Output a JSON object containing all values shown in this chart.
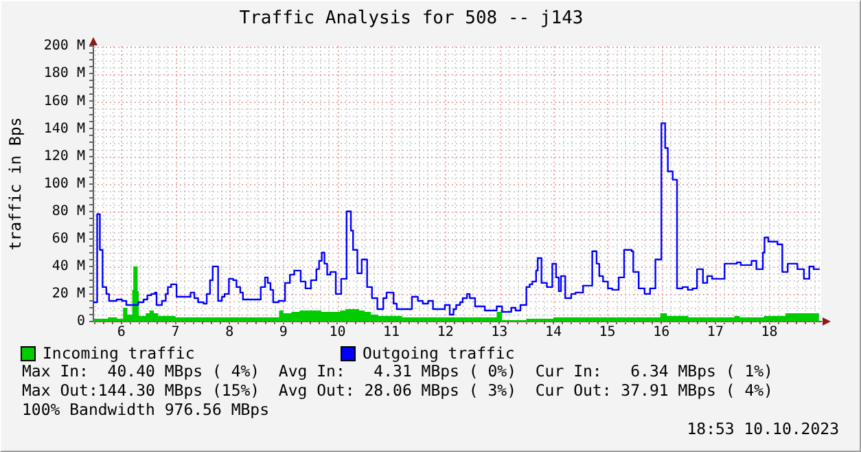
{
  "chart_data": {
    "type": "step",
    "title": "Traffic Analysis for 508 -- j143",
    "ylabel": "traffic in Bps",
    "xlim": [
      5.48,
      18.96
    ],
    "xticks": [
      {
        "value": 5.5,
        "label": null
      },
      {
        "value": 5.6667,
        "label": null
      },
      {
        "value": 5.8333,
        "label": null
      },
      6,
      {
        "value": 6.1667,
        "label": null
      },
      {
        "value": 6.3333,
        "label": null
      },
      {
        "value": 6.5,
        "label": null
      },
      {
        "value": 6.6667,
        "label": null
      },
      {
        "value": 6.8333,
        "label": null
      },
      7,
      {
        "value": 7.1667,
        "label": null
      },
      {
        "value": 7.3333,
        "label": null
      },
      {
        "value": 7.5,
        "label": null
      },
      {
        "value": 7.6667,
        "label": null
      },
      {
        "value": 7.8333,
        "label": null
      },
      8,
      {
        "value": 8.1667,
        "label": null
      },
      {
        "value": 8.3333,
        "label": null
      },
      {
        "value": 8.5,
        "label": null
      },
      {
        "value": 8.6667,
        "label": null
      },
      {
        "value": 8.8333,
        "label": null
      },
      9,
      {
        "value": 9.1667,
        "label": null
      },
      {
        "value": 9.3333,
        "label": null
      },
      {
        "value": 9.5,
        "label": null
      },
      {
        "value": 9.6667,
        "label": null
      },
      {
        "value": 9.8333,
        "label": null
      },
      10,
      {
        "value": 10.1667,
        "label": null
      },
      {
        "value": 10.3333,
        "label": null
      },
      {
        "value": 10.5,
        "label": null
      },
      {
        "value": 10.6667,
        "label": null
      },
      {
        "value": 10.8333,
        "label": null
      },
      11,
      {
        "value": 11.1667,
        "label": null
      },
      {
        "value": 11.3333,
        "label": null
      },
      {
        "value": 11.5,
        "label": null
      },
      {
        "value": 11.6667,
        "label": null
      },
      {
        "value": 11.8333,
        "label": null
      },
      12,
      {
        "value": 12.1667,
        "label": null
      },
      {
        "value": 12.3333,
        "label": null
      },
      {
        "value": 12.5,
        "label": null
      },
      {
        "value": 12.6667,
        "label": null
      },
      {
        "value": 12.8333,
        "label": null
      },
      13,
      {
        "value": 13.1667,
        "label": null
      },
      {
        "value": 13.3333,
        "label": null
      },
      {
        "value": 13.5,
        "label": null
      },
      {
        "value": 13.6667,
        "label": null
      },
      {
        "value": 13.8333,
        "label": null
      },
      14,
      {
        "value": 14.1667,
        "label": null
      },
      {
        "value": 14.3333,
        "label": null
      },
      {
        "value": 14.5,
        "label": null
      },
      {
        "value": 14.6667,
        "label": null
      },
      {
        "value": 14.8333,
        "label": null
      },
      15,
      {
        "value": 15.1667,
        "label": null
      },
      {
        "value": 15.3333,
        "label": null
      },
      {
        "value": 15.5,
        "label": null
      },
      {
        "value": 15.6667,
        "label": null
      },
      {
        "value": 15.8333,
        "label": null
      },
      16,
      {
        "value": 16.1667,
        "label": null
      },
      {
        "value": 16.3333,
        "label": null
      },
      {
        "value": 16.5,
        "label": null
      },
      {
        "value": 16.6667,
        "label": null
      },
      {
        "value": 16.8333,
        "label": null
      },
      17,
      {
        "value": 17.1667,
        "label": null
      },
      {
        "value": 17.3333,
        "label": null
      },
      {
        "value": 17.5,
        "label": null
      },
      {
        "value": 17.6667,
        "label": null
      },
      {
        "value": 17.8333,
        "label": null
      },
      18,
      {
        "value": 18.1667,
        "label": null
      },
      {
        "value": 18.3333,
        "label": null
      },
      {
        "value": 18.5,
        "label": null
      },
      {
        "value": 18.6667,
        "label": null
      },
      {
        "value": 18.8333,
        "label": null
      }
    ],
    "ylim": [
      0,
      200000000
    ],
    "yticks": [
      0,
      {
        "value": 5000000,
        "label": null
      },
      {
        "value": 10000000,
        "label": null
      },
      {
        "value": 15000000,
        "label": null
      },
      {
        "value": 20000000,
        "label": "20 M"
      },
      {
        "value": 25000000,
        "label": null
      },
      {
        "value": 30000000,
        "label": null
      },
      {
        "value": 35000000,
        "label": null
      },
      {
        "value": 40000000,
        "label": "40 M"
      },
      {
        "value": 45000000,
        "label": null
      },
      {
        "value": 50000000,
        "label": null
      },
      {
        "value": 55000000,
        "label": null
      },
      {
        "value": 60000000,
        "label": "60 M"
      },
      {
        "value": 65000000,
        "label": null
      },
      {
        "value": 70000000,
        "label": null
      },
      {
        "value": 75000000,
        "label": null
      },
      {
        "value": 80000000,
        "label": "80 M"
      },
      {
        "value": 85000000,
        "label": null
      },
      {
        "value": 90000000,
        "label": null
      },
      {
        "value": 95000000,
        "label": null
      },
      {
        "value": 100000000,
        "label": "100 M"
      },
      {
        "value": 105000000,
        "label": null
      },
      {
        "value": 110000000,
        "label": null
      },
      {
        "value": 115000000,
        "label": null
      },
      {
        "value": 120000000,
        "label": "120 M"
      },
      {
        "value": 125000000,
        "label": null
      },
      {
        "value": 130000000,
        "label": null
      },
      {
        "value": 135000000,
        "label": null
      },
      {
        "value": 140000000,
        "label": "140 M"
      },
      {
        "value": 145000000,
        "label": null
      },
      {
        "value": 150000000,
        "label": null
      },
      {
        "value": 155000000,
        "label": null
      },
      {
        "value": 160000000,
        "label": "160 M"
      },
      {
        "value": 165000000,
        "label": null
      },
      {
        "value": 170000000,
        "label": null
      },
      {
        "value": 175000000,
        "label": null
      },
      {
        "value": 180000000,
        "label": "180 M"
      },
      {
        "value": 185000000,
        "label": null
      },
      {
        "value": 190000000,
        "label": null
      },
      {
        "value": 195000000,
        "label": null
      },
      {
        "value": 200000000,
        "label": "200 M"
      }
    ],
    "grid": true,
    "legend": "bottom",
    "series": [
      {
        "name": "Incoming traffic",
        "type": "area",
        "color": "#00cc00",
        "x": [
          5.48,
          5.75,
          5.92,
          6.03,
          6.11,
          6.2,
          6.22,
          6.3,
          6.32,
          6.45,
          6.52,
          6.6,
          6.68,
          7.0,
          7.3,
          7.6,
          8.0,
          8.3,
          8.6,
          8.92,
          9.0,
          9.15,
          9.3,
          9.7,
          9.95,
          10.05,
          10.15,
          10.4,
          10.5,
          10.62,
          10.75,
          11.2,
          11.6,
          12.0,
          12.4,
          12.95,
          13.05,
          13.5,
          14.0,
          14.5,
          15.0,
          15.5,
          15.98,
          16.1,
          16.5,
          17.0,
          17.35,
          17.45,
          17.9,
          18.3,
          18.88,
          18.92
        ],
        "values": [
          2000000,
          3000000,
          2000000,
          10000000,
          5000000,
          23000000,
          40000000,
          22000000,
          4000000,
          6000000,
          8000000,
          6000000,
          4000000,
          3000000,
          3000000,
          3000000,
          3000000,
          3000000,
          3000000,
          8000000,
          6000000,
          7000000,
          8000000,
          7000000,
          7000000,
          8000000,
          9000000,
          8000000,
          7000000,
          5000000,
          4000000,
          3000000,
          3000000,
          3000000,
          3000000,
          7000000,
          1000000,
          2000000,
          3000000,
          3000000,
          3000000,
          3000000,
          6000000,
          4000000,
          3000000,
          3000000,
          4000000,
          3000000,
          4000000,
          6000000,
          6000000,
          6000000
        ]
      },
      {
        "name": "Outgoing traffic",
        "color": "#0000ff",
        "x": [
          5.48,
          5.55,
          5.6,
          5.65,
          5.72,
          5.77,
          5.91,
          6.01,
          6.09,
          6.31,
          6.41,
          6.48,
          6.55,
          6.62,
          6.65,
          6.75,
          6.82,
          6.86,
          6.92,
          7.02,
          7.28,
          7.35,
          7.42,
          7.52,
          7.58,
          7.64,
          7.69,
          7.79,
          7.86,
          7.91,
          7.99,
          8.07,
          8.13,
          8.2,
          8.25,
          8.58,
          8.66,
          8.71,
          8.76,
          8.81,
          8.91,
          9.03,
          9.12,
          9.2,
          9.32,
          9.41,
          9.51,
          9.61,
          9.66,
          9.71,
          9.76,
          9.81,
          9.87,
          9.97,
          10.07,
          10.17,
          10.25,
          10.29,
          10.37,
          10.45,
          10.55,
          10.64,
          10.74,
          10.85,
          10.91,
          11.04,
          11.1,
          11.38,
          11.49,
          11.58,
          11.68,
          11.77,
          11.99,
          12.08,
          12.15,
          12.2,
          12.27,
          12.32,
          12.4,
          12.45,
          12.55,
          12.73,
          12.95,
          13.05,
          13.22,
          13.3,
          13.39,
          13.5,
          13.56,
          13.61,
          13.68,
          13.71,
          13.78,
          13.88,
          13.98,
          14.05,
          14.1,
          14.14,
          14.22,
          14.33,
          14.41,
          14.55,
          14.72,
          14.8,
          14.85,
          14.92,
          15.01,
          15.09,
          15.21,
          15.31,
          15.45,
          15.48,
          15.58,
          15.69,
          15.79,
          15.89,
          16.0,
          16.07,
          16.12,
          16.21,
          16.29,
          16.39,
          16.49,
          16.58,
          16.66,
          16.77,
          16.85,
          16.94,
          17.17,
          17.4,
          17.47,
          17.67,
          17.76,
          17.88,
          17.91,
          17.98,
          18.15,
          18.24,
          18.34,
          18.52,
          18.64,
          18.74,
          18.82,
          18.92
        ],
        "values": [
          14000000,
          78000000,
          52000000,
          25000000,
          20000000,
          15000000,
          16000000,
          15000000,
          12000000,
          14000000,
          16000000,
          19000000,
          20000000,
          21000000,
          12000000,
          15000000,
          20000000,
          25000000,
          27000000,
          18000000,
          21000000,
          17000000,
          14000000,
          13000000,
          20000000,
          30000000,
          40000000,
          15000000,
          18000000,
          20000000,
          31000000,
          30000000,
          25000000,
          21000000,
          16000000,
          25000000,
          32000000,
          28000000,
          23000000,
          14000000,
          15000000,
          28000000,
          34000000,
          37000000,
          29000000,
          24000000,
          30000000,
          38000000,
          44000000,
          50000000,
          42000000,
          34000000,
          36000000,
          20000000,
          31000000,
          80000000,
          66000000,
          52000000,
          35000000,
          45000000,
          25000000,
          17000000,
          9000000,
          17000000,
          21000000,
          13000000,
          9000000,
          18000000,
          15000000,
          13000000,
          15000000,
          9000000,
          12000000,
          5000000,
          9000000,
          12000000,
          14000000,
          17000000,
          20000000,
          17000000,
          11000000,
          8000000,
          11000000,
          7000000,
          10000000,
          8000000,
          12000000,
          25000000,
          27000000,
          29000000,
          37000000,
          46000000,
          28000000,
          25000000,
          42000000,
          32000000,
          22000000,
          33000000,
          17000000,
          20000000,
          21000000,
          26000000,
          51000000,
          42000000,
          33000000,
          29000000,
          24000000,
          23000000,
          32000000,
          52000000,
          51000000,
          36000000,
          24000000,
          20000000,
          24000000,
          45000000,
          144000000,
          126000000,
          109000000,
          103000000,
          24000000,
          25000000,
          23000000,
          24000000,
          38000000,
          28000000,
          33000000,
          31000000,
          42000000,
          43000000,
          41000000,
          44000000,
          38000000,
          50000000,
          61000000,
          58000000,
          56000000,
          36000000,
          42000000,
          38000000,
          31000000,
          40000000,
          38000000,
          38000000
        ]
      }
    ],
    "annotations": [
      "Max In:  40.40 MBps ( 4%)  Avg In:   4.31 MBps ( 0%)  Cur In:   6.34 MBps ( 1%)",
      "Max Out:144.30 MBps (15%)  Avg Out: 28.06 MBps ( 3%)  Cur Out: 37.91 MBps ( 4%)",
      "100% Bandwidth 976.56 MBps",
      "18:53 10.10.2023"
    ]
  }
}
